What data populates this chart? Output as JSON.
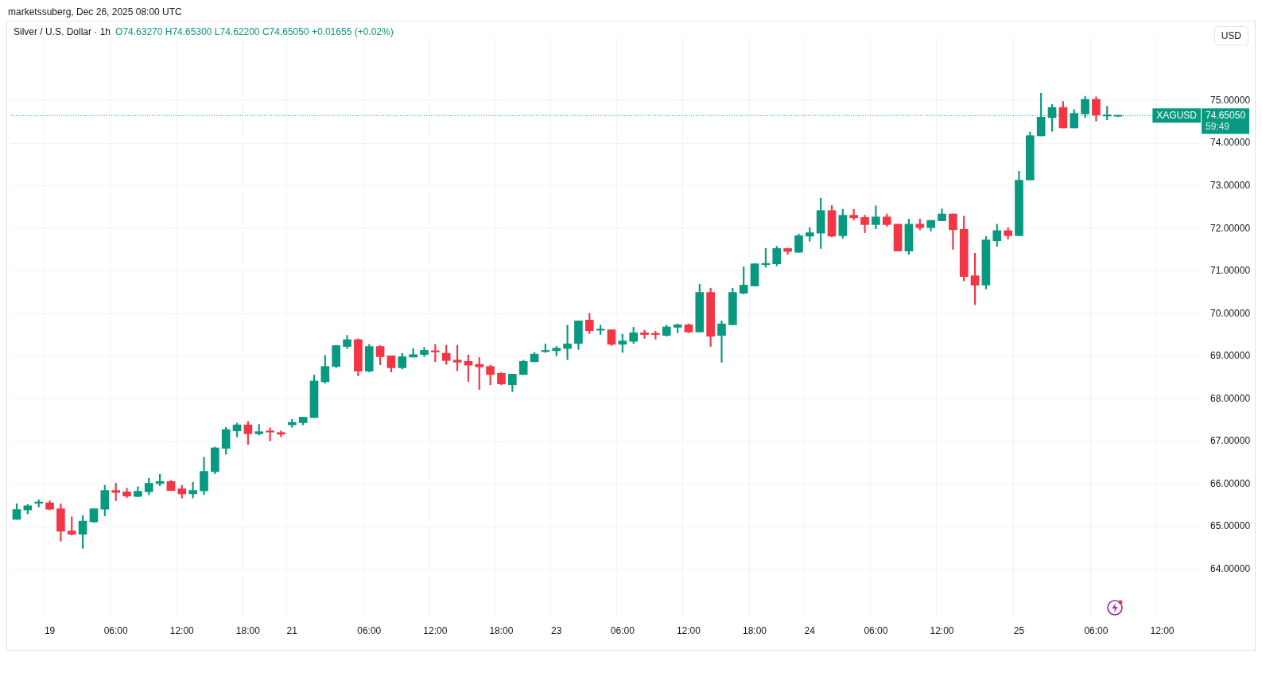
{
  "chart_data": {
    "type": "candlestick",
    "title": "Silver / U.S. Dollar · 1h",
    "subtitle": "O74.63270 H74.65300 L74.62200 C74.65050 +0.01655 (+0.02%)",
    "ylabel": "USD",
    "categories": [
      null,
      null,
      null,
      "19",
      null,
      null,
      null,
      null,
      null,
      "06:00",
      null,
      null,
      null,
      null,
      null,
      "12:00",
      null,
      null,
      null,
      null,
      null,
      "18:00",
      null,
      null,
      null,
      "21",
      null,
      null,
      null,
      null,
      null,
      null,
      "06:00",
      null,
      null,
      null,
      null,
      null,
      "12:00",
      null,
      null,
      null,
      null,
      null,
      "18:00",
      null,
      null,
      null,
      null,
      "23",
      null,
      null,
      null,
      null,
      null,
      "06:00",
      null,
      null,
      null,
      null,
      null,
      "12:00",
      null,
      null,
      null,
      null,
      null,
      "18:00",
      null,
      null,
      null,
      null,
      "24",
      null,
      null,
      null,
      null,
      null,
      "06:00",
      null,
      null,
      null,
      null,
      null,
      "12:00",
      null,
      null,
      null,
      null,
      null,
      null,
      "25",
      null,
      null,
      null,
      null,
      null,
      null,
      "06:00",
      null,
      null,
      null,
      null,
      null,
      "12:00",
      null,
      null,
      null
    ],
    "ohlc": [
      [
        65.17,
        65.54,
        65.17,
        65.4
      ],
      [
        65.39,
        65.52,
        65.3,
        65.49
      ],
      [
        65.55,
        65.63,
        65.46,
        65.56
      ],
      [
        65.56,
        65.61,
        65.39,
        65.41
      ],
      [
        65.42,
        65.54,
        64.66,
        64.89
      ],
      [
        64.9,
        65.23,
        64.8,
        64.82
      ],
      [
        64.82,
        65.26,
        64.49,
        65.13
      ],
      [
        65.11,
        65.42,
        65.1,
        65.42
      ],
      [
        65.41,
        65.97,
        65.25,
        65.85
      ],
      [
        65.85,
        66.02,
        65.61,
        65.8
      ],
      [
        65.82,
        65.9,
        65.68,
        65.72
      ],
      [
        65.71,
        65.94,
        65.7,
        65.83
      ],
      [
        65.82,
        66.14,
        65.75,
        66.02
      ],
      [
        66.01,
        66.23,
        65.96,
        66.06
      ],
      [
        66.06,
        66.09,
        65.85,
        65.85
      ],
      [
        65.89,
        65.97,
        65.67,
        65.77
      ],
      [
        65.77,
        66.04,
        65.67,
        65.85
      ],
      [
        65.84,
        66.63,
        65.75,
        66.3
      ],
      [
        66.29,
        66.87,
        66.24,
        66.85
      ],
      [
        66.84,
        67.33,
        66.7,
        67.28
      ],
      [
        67.25,
        67.43,
        67.11,
        67.39
      ],
      [
        67.39,
        67.47,
        66.93,
        67.18
      ],
      [
        67.18,
        67.4,
        67.15,
        67.23
      ],
      [
        67.23,
        67.32,
        67.01,
        67.22
      ],
      [
        67.21,
        67.25,
        67.11,
        67.17
      ],
      [
        67.39,
        67.52,
        67.33,
        67.45
      ],
      [
        67.44,
        67.57,
        67.39,
        67.57
      ],
      [
        67.56,
        68.56,
        67.56,
        68.42
      ],
      [
        68.4,
        69.02,
        68.37,
        68.76
      ],
      [
        68.76,
        69.26,
        68.73,
        69.25
      ],
      [
        69.23,
        69.49,
        69.18,
        69.39
      ],
      [
        69.39,
        69.41,
        68.54,
        68.65
      ],
      [
        68.65,
        69.28,
        68.63,
        69.23
      ],
      [
        69.23,
        69.25,
        68.8,
        68.99
      ],
      [
        69.01,
        69.01,
        68.63,
        68.73
      ],
      [
        68.73,
        69.07,
        68.7,
        68.99
      ],
      [
        68.98,
        69.18,
        68.98,
        69.04
      ],
      [
        69.04,
        69.21,
        68.99,
        69.14
      ],
      [
        69.13,
        69.28,
        68.87,
        69.1
      ],
      [
        69.07,
        69.26,
        68.81,
        68.9
      ],
      [
        68.91,
        69.26,
        68.66,
        68.86
      ],
      [
        68.88,
        69.03,
        68.41,
        68.79
      ],
      [
        68.81,
        68.97,
        68.22,
        68.75
      ],
      [
        68.76,
        68.79,
        68.33,
        68.57
      ],
      [
        68.6,
        68.62,
        68.33,
        68.35
      ],
      [
        68.33,
        68.58,
        68.17,
        68.58
      ],
      [
        68.57,
        68.91,
        68.57,
        68.88
      ],
      [
        68.87,
        69.09,
        68.87,
        69.05
      ],
      [
        69.11,
        69.29,
        69.09,
        69.14
      ],
      [
        69.13,
        69.23,
        69.01,
        69.19
      ],
      [
        69.18,
        69.73,
        68.92,
        69.29
      ],
      [
        69.3,
        69.83,
        69.16,
        69.83
      ],
      [
        69.85,
        70.01,
        69.53,
        69.6
      ],
      [
        69.61,
        69.73,
        69.51,
        69.62
      ],
      [
        69.62,
        69.62,
        69.25,
        69.28
      ],
      [
        69.28,
        69.52,
        69.09,
        69.36
      ],
      [
        69.35,
        69.68,
        69.3,
        69.55
      ],
      [
        69.55,
        69.61,
        69.42,
        69.51
      ],
      [
        69.52,
        69.59,
        69.4,
        69.51
      ],
      [
        69.49,
        69.73,
        69.47,
        69.69
      ],
      [
        69.68,
        69.76,
        69.55,
        69.74
      ],
      [
        69.74,
        69.76,
        69.55,
        69.57
      ],
      [
        69.57,
        70.69,
        69.57,
        70.5
      ],
      [
        70.5,
        70.6,
        69.23,
        69.47
      ],
      [
        69.49,
        69.83,
        68.86,
        69.76
      ],
      [
        69.74,
        70.6,
        69.73,
        70.5
      ],
      [
        70.48,
        71.1,
        70.46,
        70.67
      ],
      [
        70.65,
        71.18,
        70.65,
        71.17
      ],
      [
        71.15,
        71.53,
        71.09,
        71.18
      ],
      [
        71.17,
        71.58,
        71.12,
        71.53
      ],
      [
        71.53,
        71.54,
        71.39,
        71.46
      ],
      [
        71.44,
        71.87,
        71.44,
        71.83
      ],
      [
        71.82,
        72.02,
        71.7,
        71.9
      ],
      [
        71.89,
        72.71,
        71.53,
        72.42
      ],
      [
        72.42,
        72.54,
        71.8,
        71.82
      ],
      [
        71.83,
        72.45,
        71.77,
        72.31
      ],
      [
        72.31,
        72.45,
        72.2,
        72.25
      ],
      [
        72.26,
        72.31,
        71.9,
        72.09
      ],
      [
        72.09,
        72.53,
        71.99,
        72.27
      ],
      [
        72.27,
        72.34,
        72.05,
        72.09
      ],
      [
        72.1,
        72.1,
        71.47,
        71.47
      ],
      [
        71.47,
        72.22,
        71.39,
        72.1
      ],
      [
        72.1,
        72.22,
        71.97,
        72.02
      ],
      [
        72.02,
        72.19,
        71.94,
        72.19
      ],
      [
        72.18,
        72.46,
        72.18,
        72.34
      ],
      [
        72.34,
        72.34,
        71.51,
        71.97
      ],
      [
        71.98,
        72.29,
        70.77,
        70.87
      ],
      [
        70.89,
        71.42,
        70.21,
        70.67
      ],
      [
        70.67,
        71.81,
        70.58,
        71.73
      ],
      [
        71.71,
        72.1,
        71.58,
        71.95
      ],
      [
        71.95,
        72.02,
        71.75,
        71.83
      ],
      [
        71.83,
        73.34,
        71.83,
        73.13
      ],
      [
        73.14,
        74.26,
        73.14,
        74.18
      ],
      [
        74.17,
        75.17,
        74.17,
        74.61
      ],
      [
        74.6,
        74.91,
        74.28,
        74.84
      ],
      [
        74.84,
        74.98,
        74.36,
        74.36
      ],
      [
        74.36,
        74.79,
        74.36,
        74.7
      ],
      [
        74.69,
        75.1,
        74.6,
        75.03
      ],
      [
        75.03,
        75.09,
        74.52,
        74.66
      ],
      [
        74.64,
        74.87,
        74.55,
        74.65
      ],
      [
        74.6327,
        74.653,
        74.622,
        74.6505
      ],
      null,
      null,
      null,
      null,
      null,
      null,
      null
    ],
    "colors": [
      "#089981",
      "#089981",
      "#089981",
      "#f23645",
      "#f23645",
      "#f23645",
      "#089981",
      "#089981",
      "#089981",
      "#f23645",
      "#f23645",
      "#089981",
      "#089981",
      "#089981",
      "#f23645",
      "#f23645",
      "#089981",
      "#089981",
      "#089981",
      "#089981",
      "#089981",
      "#f23645",
      "#089981",
      "#f23645",
      "#f23645",
      "#089981",
      "#089981",
      "#089981",
      "#089981",
      "#089981",
      "#089981",
      "#f23645",
      "#089981",
      "#f23645",
      "#f23645",
      "#089981",
      "#089981",
      "#089981",
      "#f23645",
      "#f23645",
      "#f23645",
      "#f23645",
      "#f23645",
      "#f23645",
      "#f23645",
      "#089981",
      "#089981",
      "#089981",
      "#089981",
      "#089981",
      "#089981",
      "#089981",
      "#f23645",
      "#089981",
      "#f23645",
      "#089981",
      "#089981",
      "#f23645",
      "#f23645",
      "#089981",
      "#089981",
      "#f23645",
      "#089981",
      "#f23645",
      "#089981",
      "#089981",
      "#089981",
      "#089981",
      "#089981",
      "#089981",
      "#f23645",
      "#089981",
      "#089981",
      "#089981",
      "#f23645",
      "#089981",
      "#f23645",
      "#f23645",
      "#089981",
      "#f23645",
      "#f23645",
      "#089981",
      "#f23645",
      "#089981",
      "#089981",
      "#f23645",
      "#f23645",
      "#f23645",
      "#089981",
      "#089981",
      "#f23645",
      "#089981",
      "#089981",
      "#089981",
      "#089981",
      "#f23645",
      "#089981",
      "#089981",
      "#f23645",
      "#089981",
      "#089981",
      null,
      null,
      null,
      null,
      null,
      null,
      null
    ],
    "ylim": [
      62.9,
      76.5
    ],
    "yticks": [
      {
        "value": 64,
        "label": "64.00000"
      },
      {
        "value": 65,
        "label": "65.00000"
      },
      {
        "value": 66,
        "label": "66.00000"
      },
      {
        "value": 67,
        "label": "67.00000"
      },
      {
        "value": 68,
        "label": "68.00000"
      },
      {
        "value": 69,
        "label": "69.00000"
      },
      {
        "value": 70,
        "label": "70.00000"
      },
      {
        "value": 71,
        "label": "71.00000"
      },
      {
        "value": 72,
        "label": "72.00000"
      },
      {
        "value": 73,
        "label": "73.00000"
      },
      {
        "value": 74,
        "label": "74.00000"
      },
      {
        "value": 75,
        "label": "75.00000"
      }
    ],
    "grid": true,
    "legend": false,
    "ref_lines": [
      {
        "axis": "y",
        "value": 74.6505,
        "label": "XAGUSD",
        "color": "#089981",
        "line_style": "dotted"
      }
    ],
    "annotations": [
      "marketssuberg, Dec 26, 2025 08:00 UTC",
      "74.65050",
      "59:49"
    ]
  }
}
